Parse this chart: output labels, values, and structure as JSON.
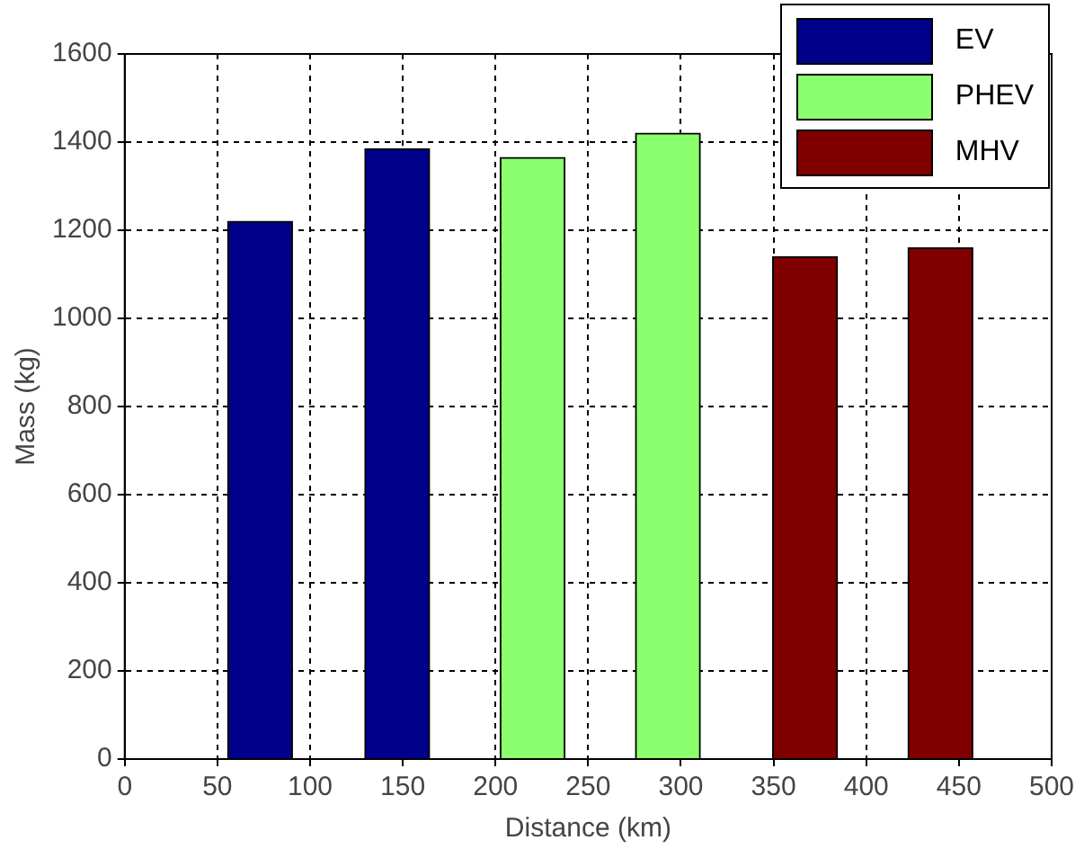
{
  "chart_data": {
    "type": "bar",
    "xlabel": "Distance (km)",
    "ylabel": "Mass (kg)",
    "series": [
      {
        "name": "EV",
        "color": "#00008b",
        "x": [
          73,
          147
        ],
        "values": [
          1220,
          1385
        ]
      },
      {
        "name": "PHEV",
        "color": "#8cff6e",
        "x": [
          220,
          293
        ],
        "values": [
          1365,
          1420
        ]
      },
      {
        "name": "MHV",
        "color": "#800000",
        "x": [
          367,
          440
        ],
        "values": [
          1140,
          1160
        ]
      }
    ],
    "xlim": [
      0,
      500
    ],
    "xticks": [
      0,
      50,
      100,
      150,
      200,
      250,
      300,
      350,
      400,
      450,
      500
    ],
    "ylim": [
      0,
      1600
    ],
    "yticks": [
      0,
      200,
      400,
      600,
      800,
      1000,
      1200,
      1400,
      1600
    ],
    "grid": true,
    "legend": "top right"
  }
}
